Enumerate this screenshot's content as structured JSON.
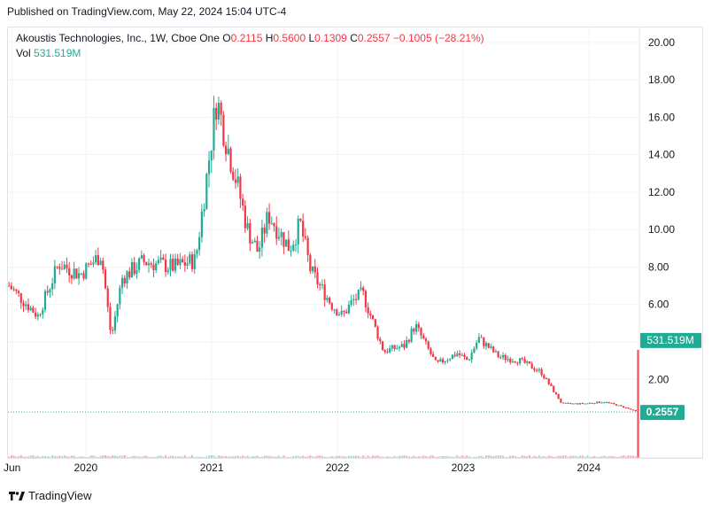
{
  "header": {
    "published": "Published on TradingView.com, May 22, 2024 15:04 UTC-4"
  },
  "legend": {
    "symbol": "Akoustis Technologies, Inc., 1W, Cboe One",
    "o_label": "O",
    "o_value": "0.2115",
    "h_label": "H",
    "h_value": "0.5600",
    "l_label": "L",
    "l_value": "0.1309",
    "c_label": "C",
    "c_value": "0.2557",
    "change": "−0.1005 (−28.21%)",
    "vol_label": "Vol",
    "vol_value": "531.519M"
  },
  "footer": {
    "brand": "TradingView"
  },
  "colors": {
    "up": "#22ab94",
    "down": "#f23645",
    "grid": "#f0f3fa",
    "axis_text": "#131722"
  },
  "chart_data": {
    "type": "candlestick",
    "title": "Akoustis Technologies, Inc., 1W, Cboe One",
    "x_ticks": [
      "Jun",
      "2020",
      "2021",
      "2022",
      "2023",
      "2024"
    ],
    "y_ticks": [
      "2.00",
      "4.00",
      "6.00",
      "8.00",
      "10.00",
      "12.00",
      "14.00",
      "16.00",
      "18.00",
      "20.00"
    ],
    "ylim": [
      -2.2,
      20.8
    ],
    "last_price": 0.2557,
    "last_price_label": "0.2557",
    "last_volume": "531.519M",
    "grid": true,
    "price_trend": [
      {
        "date": "2019-06",
        "price": 7.0
      },
      {
        "date": "2019-08",
        "price": 5.4
      },
      {
        "date": "2019-10",
        "price": 8.2
      },
      {
        "date": "2019-12",
        "price": 7.6
      },
      {
        "date": "2020-02",
        "price": 8.7
      },
      {
        "date": "2020-03",
        "price": 4.2
      },
      {
        "date": "2020-04",
        "price": 7.4
      },
      {
        "date": "2020-06",
        "price": 8.3
      },
      {
        "date": "2020-09",
        "price": 8.0
      },
      {
        "date": "2020-11",
        "price": 8.4
      },
      {
        "date": "2020-12",
        "price": 12.5
      },
      {
        "date": "2021-01",
        "price": 17.0
      },
      {
        "date": "2021-02",
        "price": 14.5
      },
      {
        "date": "2021-03",
        "price": 12.5
      },
      {
        "date": "2021-04",
        "price": 10.0
      },
      {
        "date": "2021-05",
        "price": 8.8
      },
      {
        "date": "2021-06",
        "price": 10.8
      },
      {
        "date": "2021-08",
        "price": 9.0
      },
      {
        "date": "2021-09",
        "price": 10.3
      },
      {
        "date": "2021-10",
        "price": 7.8
      },
      {
        "date": "2021-12",
        "price": 6.0
      },
      {
        "date": "2022-01",
        "price": 5.4
      },
      {
        "date": "2022-02",
        "price": 6.2
      },
      {
        "date": "2022-03",
        "price": 6.6
      },
      {
        "date": "2022-05",
        "price": 3.5
      },
      {
        "date": "2022-07",
        "price": 3.8
      },
      {
        "date": "2022-08",
        "price": 4.9
      },
      {
        "date": "2022-10",
        "price": 2.8
      },
      {
        "date": "2022-12",
        "price": 3.4
      },
      {
        "date": "2023-01",
        "price": 3.0
      },
      {
        "date": "2023-02",
        "price": 4.2
      },
      {
        "date": "2023-04",
        "price": 3.2
      },
      {
        "date": "2023-06",
        "price": 3.0
      },
      {
        "date": "2023-08",
        "price": 2.4
      },
      {
        "date": "2023-10",
        "price": 0.7
      },
      {
        "date": "2023-12",
        "price": 0.7
      },
      {
        "date": "2024-02",
        "price": 0.8
      },
      {
        "date": "2024-04",
        "price": 0.5
      },
      {
        "date": "2024-05",
        "price": 0.2557
      }
    ]
  }
}
